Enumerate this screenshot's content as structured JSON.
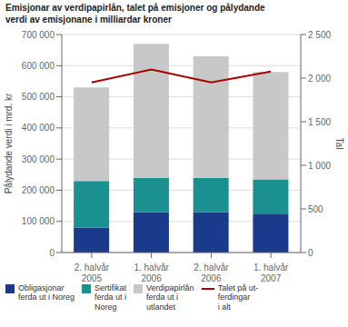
{
  "chart_data": {
    "type": "bar",
    "title": "Emisjonar av verdipapirlån, talet på emisjoner og pålydande\nverdi av emisjonane i milliardar kroner",
    "categories": [
      "2. halvår\n2005",
      "1. halvår\n2006",
      "2. halvår\n2006",
      "1. halvår\n2007"
    ],
    "stacked": true,
    "grid": true,
    "legend": "lower left",
    "ylabel": "Pålydande verdi i mrd. kr",
    "y2label": "Tal",
    "ylim": [
      0,
      700000
    ],
    "yticks": [
      0,
      {
        "value": 100000,
        "label": "100 000"
      },
      {
        "value": 200000,
        "label": "200 000"
      },
      {
        "value": 300000,
        "label": "300 000"
      },
      {
        "value": 400000,
        "label": "400 000"
      },
      {
        "value": 500000,
        "label": "500 000"
      },
      {
        "value": 600000,
        "label": "600 000"
      },
      {
        "value": 700000,
        "label": "700 000"
      }
    ],
    "y2lim": [
      0,
      2500
    ],
    "y2ticks": [
      0,
      500,
      {
        "value": 1000,
        "label": "1 000"
      },
      {
        "value": 1500,
        "label": "1 500"
      },
      {
        "value": 2000,
        "label": "2 000"
      },
      {
        "value": 2500,
        "label": "2 500"
      }
    ],
    "series": [
      {
        "name": "Obligasjonar\nferda ut i Noreg",
        "color": "#1a3a8c",
        "values": [
          80000,
          130000,
          130000,
          125000
        ]
      },
      {
        "name": "Sertifikat\nferda ut i\nNoreg",
        "color": "#1a9090",
        "values": [
          150000,
          110000,
          110000,
          110000
        ]
      },
      {
        "name": "Verdipapirlån\nferda ut i\nutlandet",
        "color": "#c8c8c8",
        "values": [
          300000,
          430000,
          390000,
          345000
        ]
      },
      {
        "name": "Talet på ut-\nferdingar\ni alt",
        "type": "line",
        "axis": "y2",
        "color": "#aa0000",
        "values": [
          1950,
          2100,
          1950,
          2075
        ]
      }
    ]
  }
}
